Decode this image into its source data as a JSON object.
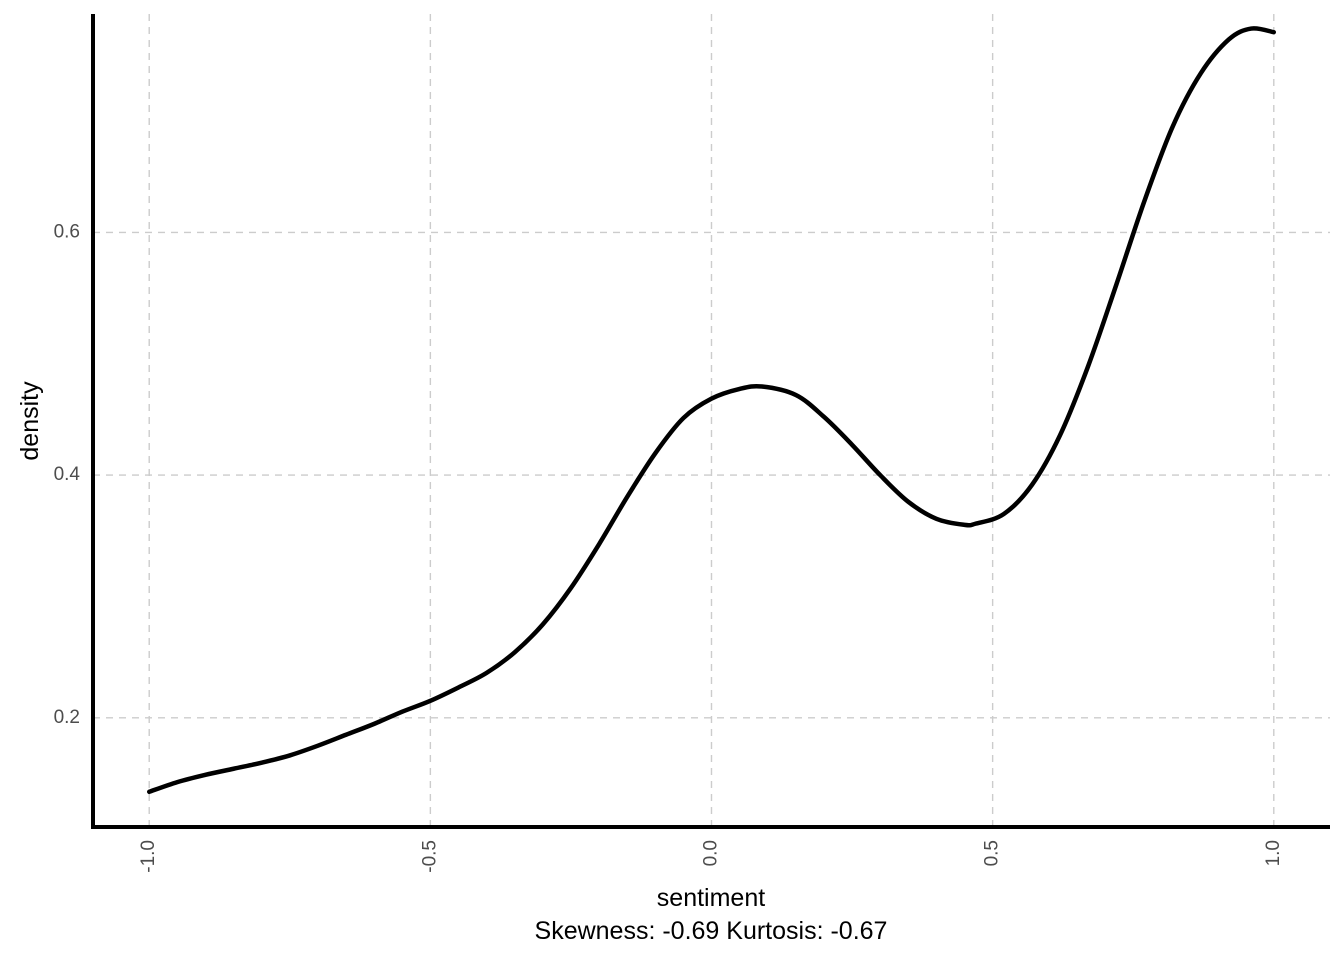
{
  "chart_data": {
    "type": "line",
    "xlabel": "sentiment",
    "ylabel": "density",
    "caption": "Skewness: -0.69 Kurtosis: -0.67",
    "xlim": [
      -1.1,
      1.1
    ],
    "ylim": [
      0.11,
      0.78
    ],
    "x_ticks": [
      -1.0,
      -0.5,
      0.0,
      0.5,
      1.0
    ],
    "x_tick_labels": [
      "-1.0",
      "-0.5",
      "0.0",
      "0.5",
      "1.0"
    ],
    "y_ticks": [
      0.2,
      0.4,
      0.6
    ],
    "y_tick_labels": [
      "0.2",
      "0.4",
      "0.6"
    ],
    "grid": true,
    "series": [
      {
        "color": "#000000",
        "x": [
          -1.0,
          -0.95,
          -0.9,
          -0.85,
          -0.8,
          -0.75,
          -0.7,
          -0.65,
          -0.6,
          -0.55,
          -0.5,
          -0.45,
          -0.4,
          -0.35,
          -0.3,
          -0.25,
          -0.2,
          -0.15,
          -0.1,
          -0.05,
          0.0,
          0.05,
          0.09,
          0.15,
          0.2,
          0.25,
          0.3,
          0.35,
          0.4,
          0.45,
          0.47,
          0.52,
          0.57,
          0.62,
          0.67,
          0.72,
          0.77,
          0.82,
          0.87,
          0.92,
          0.96,
          1.0
        ],
        "y": [
          0.139,
          0.147,
          0.153,
          0.158,
          0.163,
          0.169,
          0.177,
          0.186,
          0.195,
          0.205,
          0.214,
          0.225,
          0.237,
          0.254,
          0.277,
          0.307,
          0.343,
          0.382,
          0.418,
          0.447,
          0.463,
          0.471,
          0.473,
          0.466,
          0.448,
          0.425,
          0.4,
          0.378,
          0.364,
          0.359,
          0.36,
          0.368,
          0.392,
          0.433,
          0.49,
          0.557,
          0.626,
          0.687,
          0.731,
          0.759,
          0.768,
          0.765
        ]
      }
    ]
  }
}
